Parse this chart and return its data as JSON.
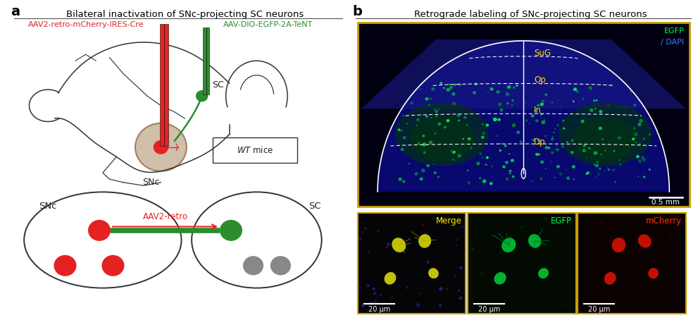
{
  "panel_a_title": "Bilateral inactivation of SNc-projecting SC neurons",
  "panel_b_title": "Retrograde labeling of SNc-projecting SC neurons",
  "label_a": "a",
  "label_b": "b",
  "label_red": "AAV2-retro-mCherry-IRES-Cre",
  "label_green": "AAV-DIO-EGFP-2A-TeNT",
  "label_SNc": "SNc",
  "label_SC": "SC",
  "label_WT": "WT mice",
  "label_AAV2retro": "AAV2-retro",
  "color_red": "#e52222",
  "color_green": "#2d8c2d",
  "color_gray": "#888888",
  "color_outline": "#333333",
  "color_brain_tan": "#c8b49a",
  "b_layers": [
    "SuG",
    "Op",
    "In",
    "Dp"
  ],
  "b_scale_bar": "0.5 mm",
  "b_scale_bar_small": "20 μm",
  "b_merge_label": "Merge",
  "b_egfp_label": "EGFP",
  "b_mcherry_label": "mCherry",
  "bg_color": "#ffffff",
  "title_fontsize": 9.5,
  "panel_label_fontsize": 14
}
